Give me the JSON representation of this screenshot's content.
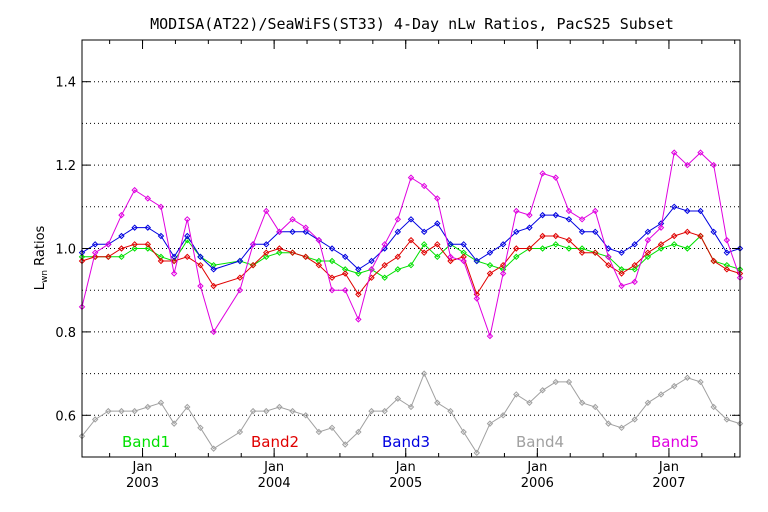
{
  "chart_data": {
    "type": "line",
    "title": "MODISA(AT22)/SeaWiFS(ST33) 4-Day nLw Ratios, PacS25 Subset",
    "ylabel": "L_wn Ratios",
    "ylabel_main": "L",
    "ylabel_sub": "wn",
    "ylabel_rest": " Ratios",
    "xlabel": "",
    "ylim": [
      0.5,
      1.5
    ],
    "xlim": [
      2002.54,
      2007.54
    ],
    "y_ticks": [
      0.6,
      0.8,
      1.0,
      1.2,
      1.4
    ],
    "y_tick_labels": [
      "0.6",
      "0.8",
      "1.0",
      "1.2",
      "1.4"
    ],
    "y_gridlines": [
      0.6,
      0.7,
      0.8,
      0.9,
      1.0,
      1.1,
      1.2,
      1.3,
      1.4
    ],
    "x_ticks": [
      {
        "x": 2003.0,
        "month": "Jan",
        "year": "2003"
      },
      {
        "x": 2004.0,
        "month": "Jan",
        "year": "2004"
      },
      {
        "x": 2005.0,
        "month": "Jan",
        "year": "2005"
      },
      {
        "x": 2006.0,
        "month": "Jan",
        "year": "2006"
      },
      {
        "x": 2007.0,
        "month": "Jan",
        "year": "2007"
      }
    ],
    "grid": true,
    "legend_position": "bottom",
    "series": [
      {
        "name": "Band1",
        "color": "#00e000",
        "x": [
          2002.54,
          2002.64,
          2002.74,
          2002.84,
          2002.94,
          2003.04,
          2003.14,
          2003.24,
          2003.34,
          2003.44,
          2003.54,
          2003.74,
          2003.84,
          2003.94,
          2004.04,
          2004.14,
          2004.24,
          2004.34,
          2004.44,
          2004.54,
          2004.64,
          2004.74,
          2004.84,
          2004.94,
          2005.04,
          2005.14,
          2005.24,
          2005.34,
          2005.44,
          2005.54,
          2005.64,
          2005.74,
          2005.84,
          2005.94,
          2006.04,
          2006.14,
          2006.24,
          2006.34,
          2006.44,
          2006.54,
          2006.64,
          2006.74,
          2006.84,
          2006.94,
          2007.04,
          2007.14,
          2007.24,
          2007.34,
          2007.44,
          2007.54
        ],
        "y": [
          0.98,
          0.98,
          0.98,
          0.98,
          1.0,
          1.0,
          0.98,
          0.97,
          1.02,
          0.98,
          0.96,
          0.97,
          0.96,
          0.98,
          0.99,
          0.99,
          0.98,
          0.97,
          0.97,
          0.95,
          0.94,
          0.95,
          0.93,
          0.95,
          0.96,
          1.01,
          0.98,
          1.01,
          0.99,
          0.97,
          0.96,
          0.95,
          0.98,
          1.0,
          1.0,
          1.01,
          1.0,
          1.0,
          0.99,
          0.98,
          0.95,
          0.95,
          0.98,
          1.0,
          1.01,
          1.0,
          1.03,
          0.97,
          0.96,
          0.95
        ]
      },
      {
        "name": "Band2",
        "color": "#e00000",
        "x": [
          2002.54,
          2002.64,
          2002.74,
          2002.84,
          2002.94,
          2003.04,
          2003.14,
          2003.24,
          2003.34,
          2003.44,
          2003.54,
          2003.74,
          2003.84,
          2003.94,
          2004.04,
          2004.14,
          2004.24,
          2004.34,
          2004.44,
          2004.54,
          2004.64,
          2004.74,
          2004.84,
          2004.94,
          2005.04,
          2005.14,
          2005.24,
          2005.34,
          2005.44,
          2005.54,
          2005.64,
          2005.74,
          2005.84,
          2005.94,
          2006.04,
          2006.14,
          2006.24,
          2006.34,
          2006.44,
          2006.54,
          2006.64,
          2006.74,
          2006.84,
          2006.94,
          2007.04,
          2007.14,
          2007.24,
          2007.34,
          2007.44,
          2007.54
        ],
        "y": [
          0.97,
          0.98,
          0.98,
          1.0,
          1.01,
          1.01,
          0.97,
          0.97,
          0.98,
          0.96,
          0.91,
          0.93,
          0.96,
          0.99,
          1.0,
          0.99,
          0.98,
          0.96,
          0.93,
          0.94,
          0.89,
          0.93,
          0.96,
          0.98,
          1.02,
          0.99,
          1.01,
          0.97,
          0.98,
          0.89,
          0.94,
          0.96,
          1.0,
          1.0,
          1.03,
          1.03,
          1.02,
          0.99,
          0.99,
          0.96,
          0.94,
          0.96,
          0.99,
          1.01,
          1.03,
          1.04,
          1.03,
          0.97,
          0.95,
          0.94
        ]
      },
      {
        "name": "Band3",
        "color": "#0000e0",
        "x": [
          2002.54,
          2002.64,
          2002.74,
          2002.84,
          2002.94,
          2003.04,
          2003.14,
          2003.24,
          2003.34,
          2003.44,
          2003.54,
          2003.74,
          2003.84,
          2003.94,
          2004.04,
          2004.14,
          2004.24,
          2004.34,
          2004.44,
          2004.54,
          2004.64,
          2004.74,
          2004.84,
          2004.94,
          2005.04,
          2005.14,
          2005.24,
          2005.34,
          2005.44,
          2005.54,
          2005.64,
          2005.74,
          2005.84,
          2005.94,
          2006.04,
          2006.14,
          2006.24,
          2006.34,
          2006.44,
          2006.54,
          2006.64,
          2006.74,
          2006.84,
          2006.94,
          2007.04,
          2007.14,
          2007.24,
          2007.34,
          2007.44,
          2007.54
        ],
        "y": [
          0.99,
          1.01,
          1.01,
          1.03,
          1.05,
          1.05,
          1.03,
          0.98,
          1.03,
          0.98,
          0.95,
          0.97,
          1.01,
          1.01,
          1.04,
          1.04,
          1.04,
          1.02,
          1.0,
          0.98,
          0.95,
          0.97,
          1.0,
          1.04,
          1.07,
          1.04,
          1.06,
          1.01,
          1.01,
          0.97,
          0.99,
          1.01,
          1.04,
          1.05,
          1.08,
          1.08,
          1.07,
          1.04,
          1.04,
          1.0,
          0.99,
          1.01,
          1.04,
          1.06,
          1.1,
          1.09,
          1.09,
          1.04,
          0.99,
          1.0
        ]
      },
      {
        "name": "Band4",
        "color": "#a0a0a0",
        "x": [
          2002.54,
          2002.64,
          2002.74,
          2002.84,
          2002.94,
          2003.04,
          2003.14,
          2003.24,
          2003.34,
          2003.44,
          2003.54,
          2003.74,
          2003.84,
          2003.94,
          2004.04,
          2004.14,
          2004.24,
          2004.34,
          2004.44,
          2004.54,
          2004.64,
          2004.74,
          2004.84,
          2004.94,
          2005.04,
          2005.14,
          2005.24,
          2005.34,
          2005.44,
          2005.54,
          2005.64,
          2005.74,
          2005.84,
          2005.94,
          2006.04,
          2006.14,
          2006.24,
          2006.34,
          2006.44,
          2006.54,
          2006.64,
          2006.74,
          2006.84,
          2006.94,
          2007.04,
          2007.14,
          2007.24,
          2007.34,
          2007.44,
          2007.54
        ],
        "y": [
          0.55,
          0.59,
          0.61,
          0.61,
          0.61,
          0.62,
          0.63,
          0.58,
          0.62,
          0.57,
          0.52,
          0.56,
          0.61,
          0.61,
          0.62,
          0.61,
          0.6,
          0.56,
          0.57,
          0.53,
          0.56,
          0.61,
          0.61,
          0.64,
          0.62,
          0.7,
          0.63,
          0.61,
          0.56,
          0.51,
          0.58,
          0.6,
          0.65,
          0.63,
          0.66,
          0.68,
          0.68,
          0.63,
          0.62,
          0.58,
          0.57,
          0.59,
          0.63,
          0.65,
          0.67,
          0.69,
          0.68,
          0.62,
          0.59,
          0.58
        ]
      },
      {
        "name": "Band5",
        "color": "#e000e0",
        "x": [
          2002.54,
          2002.64,
          2002.74,
          2002.84,
          2002.94,
          2003.04,
          2003.14,
          2003.24,
          2003.34,
          2003.44,
          2003.54,
          2003.74,
          2003.84,
          2003.94,
          2004.04,
          2004.14,
          2004.24,
          2004.34,
          2004.44,
          2004.54,
          2004.64,
          2004.74,
          2004.84,
          2004.94,
          2005.04,
          2005.14,
          2005.24,
          2005.34,
          2005.44,
          2005.54,
          2005.64,
          2005.74,
          2005.84,
          2005.94,
          2006.04,
          2006.14,
          2006.24,
          2006.34,
          2006.44,
          2006.54,
          2006.64,
          2006.74,
          2006.84,
          2006.94,
          2007.04,
          2007.14,
          2007.24,
          2007.34,
          2007.44,
          2007.54
        ],
        "y": [
          0.86,
          0.99,
          1.01,
          1.08,
          1.14,
          1.12,
          1.1,
          0.94,
          1.07,
          0.91,
          0.8,
          0.9,
          1.01,
          1.09,
          1.04,
          1.07,
          1.05,
          1.02,
          0.9,
          0.9,
          0.83,
          0.95,
          1.01,
          1.07,
          1.17,
          1.15,
          1.12,
          0.98,
          0.97,
          0.88,
          0.79,
          0.94,
          1.09,
          1.08,
          1.18,
          1.17,
          1.09,
          1.07,
          1.09,
          0.98,
          0.91,
          0.92,
          1.02,
          1.05,
          1.23,
          1.2,
          1.23,
          1.2,
          1.02,
          0.93
        ]
      }
    ]
  }
}
